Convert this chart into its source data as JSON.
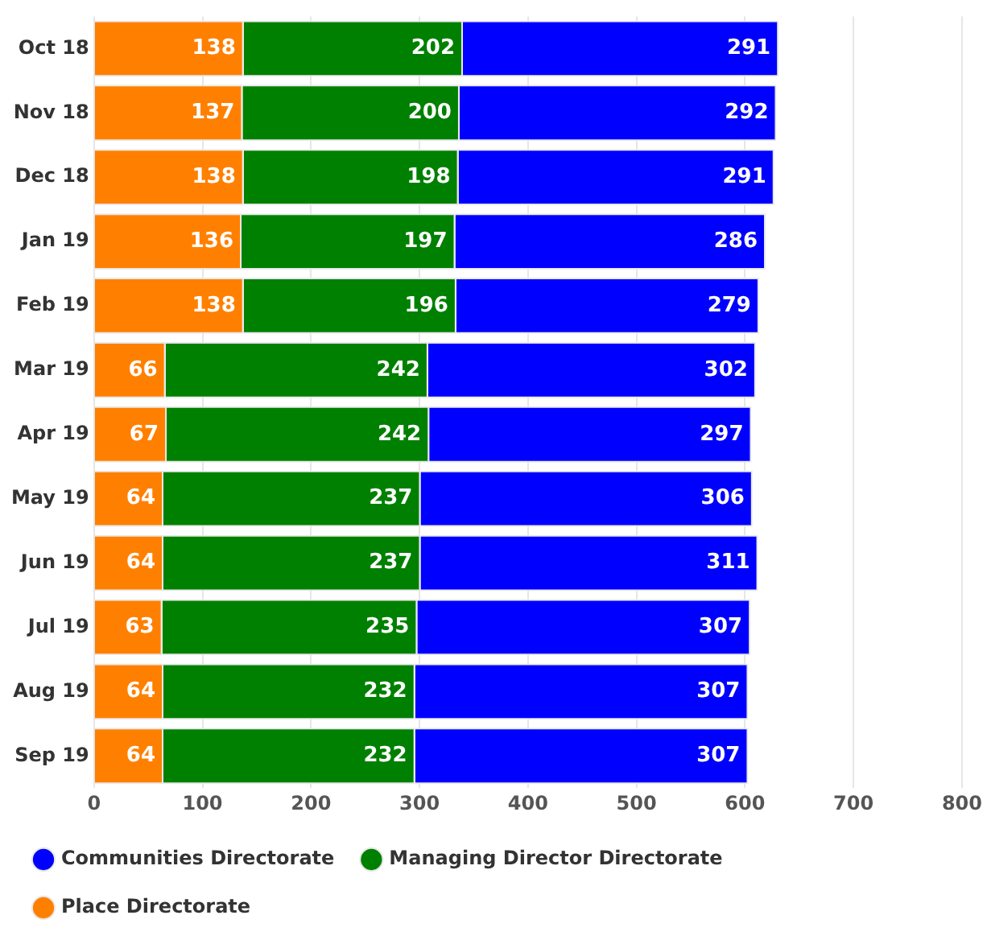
{
  "chart_data": {
    "type": "bar",
    "orientation": "horizontal",
    "stacked": true,
    "data_labels": true,
    "grid": "x",
    "legend": "bottom",
    "categories": [
      "Oct 18",
      "Nov 18",
      "Dec 18",
      "Jan 19",
      "Feb 19",
      "Mar 19",
      "Apr 19",
      "May 19",
      "Jun 19",
      "Jul 19",
      "Aug 19",
      "Sep 19"
    ],
    "series": [
      {
        "name": "Place Directorate",
        "color": "#ff8000",
        "values": [
          138,
          137,
          138,
          136,
          138,
          66,
          67,
          64,
          64,
          63,
          64,
          64
        ]
      },
      {
        "name": "Managing Director Directorate",
        "color": "#008000",
        "values": [
          202,
          200,
          198,
          197,
          196,
          242,
          242,
          237,
          237,
          235,
          232,
          232
        ]
      },
      {
        "name": "Communities Directorate",
        "color": "#0000ff",
        "values": [
          291,
          292,
          291,
          286,
          279,
          302,
          297,
          306,
          311,
          307,
          307,
          307
        ]
      }
    ],
    "xlim": [
      0,
      800
    ],
    "xticks": [
      0,
      100,
      200,
      300,
      400,
      500,
      600,
      700,
      800
    ]
  }
}
